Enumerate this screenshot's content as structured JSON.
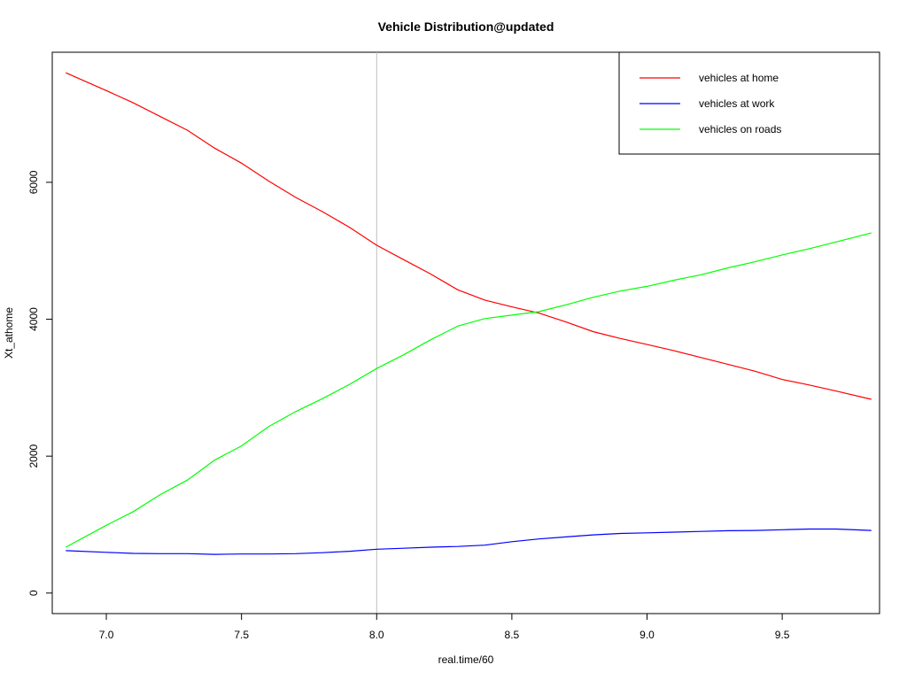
{
  "chart_data": {
    "type": "line",
    "title": "Vehicle Distribution@updated",
    "xlabel": "real.time/60",
    "ylabel": "Xt_athome",
    "xlim": [
      6.8,
      9.86
    ],
    "ylim": [
      -300,
      7900
    ],
    "x_ticks": [
      7.0,
      7.5,
      8.0,
      8.5,
      9.0,
      9.5
    ],
    "x_tick_labels": [
      "7.0",
      "7.5",
      "8.0",
      "8.5",
      "9.0",
      "9.5"
    ],
    "y_ticks": [
      0,
      2000,
      4000,
      6000
    ],
    "y_tick_labels": [
      "0",
      "2000",
      "4000",
      "6000"
    ],
    "vertical_reference_line": 8.0,
    "grid": false,
    "legend_position": "top-right",
    "series": [
      {
        "name": "vehicles at home",
        "color": "#ff0000",
        "points": [
          [
            6.85,
            7600
          ],
          [
            7.0,
            7340
          ],
          [
            7.1,
            7160
          ],
          [
            7.2,
            6960
          ],
          [
            7.3,
            6760
          ],
          [
            7.4,
            6500
          ],
          [
            7.5,
            6280
          ],
          [
            7.6,
            6020
          ],
          [
            7.7,
            5780
          ],
          [
            7.8,
            5570
          ],
          [
            7.9,
            5340
          ],
          [
            8.0,
            5080
          ],
          [
            8.1,
            4870
          ],
          [
            8.2,
            4660
          ],
          [
            8.3,
            4430
          ],
          [
            8.4,
            4280
          ],
          [
            8.5,
            4180
          ],
          [
            8.6,
            4090
          ],
          [
            8.7,
            3960
          ],
          [
            8.8,
            3820
          ],
          [
            8.9,
            3720
          ],
          [
            9.0,
            3630
          ],
          [
            9.1,
            3540
          ],
          [
            9.2,
            3440
          ],
          [
            9.3,
            3340
          ],
          [
            9.4,
            3240
          ],
          [
            9.5,
            3120
          ],
          [
            9.6,
            3040
          ],
          [
            9.7,
            2950
          ],
          [
            9.83,
            2830
          ]
        ]
      },
      {
        "name": "vehicles at work",
        "color": "#0000ff",
        "points": [
          [
            6.85,
            620
          ],
          [
            7.0,
            595
          ],
          [
            7.1,
            580
          ],
          [
            7.2,
            575
          ],
          [
            7.3,
            575
          ],
          [
            7.4,
            565
          ],
          [
            7.5,
            570
          ],
          [
            7.6,
            570
          ],
          [
            7.7,
            575
          ],
          [
            7.8,
            590
          ],
          [
            7.9,
            610
          ],
          [
            8.0,
            640
          ],
          [
            8.1,
            655
          ],
          [
            8.2,
            670
          ],
          [
            8.3,
            680
          ],
          [
            8.4,
            700
          ],
          [
            8.5,
            750
          ],
          [
            8.6,
            790
          ],
          [
            8.7,
            820
          ],
          [
            8.8,
            850
          ],
          [
            8.9,
            870
          ],
          [
            9.0,
            880
          ],
          [
            9.1,
            890
          ],
          [
            9.2,
            900
          ],
          [
            9.3,
            910
          ],
          [
            9.4,
            915
          ],
          [
            9.5,
            925
          ],
          [
            9.6,
            935
          ],
          [
            9.7,
            935
          ],
          [
            9.83,
            915
          ]
        ]
      },
      {
        "name": "vehicles on roads",
        "color": "#00ff00",
        "points": [
          [
            6.85,
            670
          ],
          [
            7.0,
            990
          ],
          [
            7.1,
            1190
          ],
          [
            7.2,
            1440
          ],
          [
            7.3,
            1650
          ],
          [
            7.4,
            1940
          ],
          [
            7.5,
            2150
          ],
          [
            7.6,
            2430
          ],
          [
            7.7,
            2650
          ],
          [
            7.8,
            2840
          ],
          [
            7.9,
            3050
          ],
          [
            8.0,
            3280
          ],
          [
            8.1,
            3480
          ],
          [
            8.2,
            3700
          ],
          [
            8.3,
            3900
          ],
          [
            8.4,
            4010
          ],
          [
            8.5,
            4060
          ],
          [
            8.6,
            4110
          ],
          [
            8.7,
            4210
          ],
          [
            8.8,
            4320
          ],
          [
            8.9,
            4410
          ],
          [
            9.0,
            4480
          ],
          [
            9.1,
            4570
          ],
          [
            9.2,
            4650
          ],
          [
            9.3,
            4750
          ],
          [
            9.4,
            4840
          ],
          [
            9.5,
            4940
          ],
          [
            9.6,
            5030
          ],
          [
            9.7,
            5130
          ],
          [
            9.83,
            5260
          ]
        ]
      }
    ]
  }
}
